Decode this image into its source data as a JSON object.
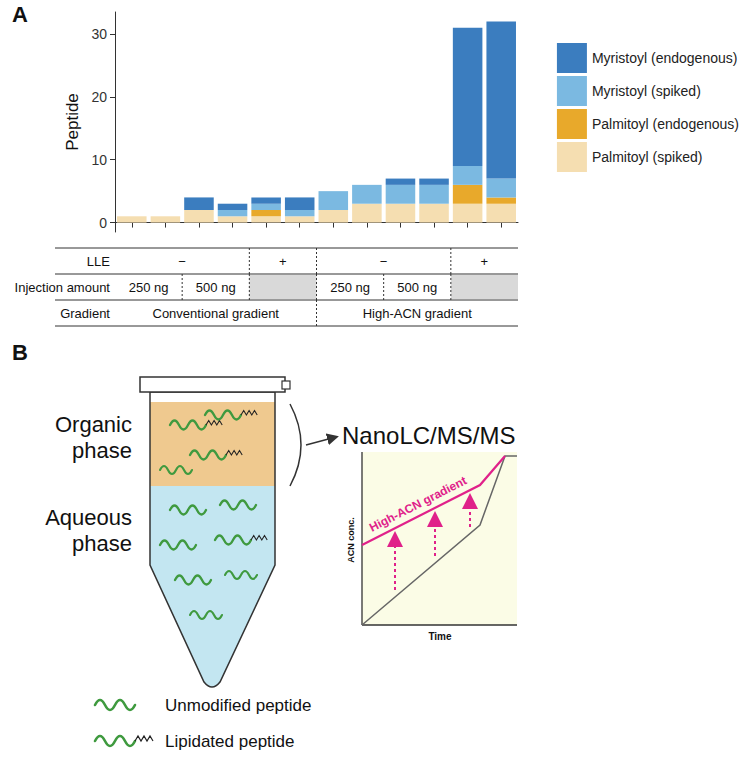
{
  "chart_data": {
    "type": "bar",
    "stacked": true,
    "y_label": "Peptide",
    "categories": [
      null,
      null,
      null,
      null,
      null,
      null,
      null,
      null,
      null,
      null,
      null,
      null
    ],
    "series": [
      {
        "name": "Myristoyl (endogenous)",
        "color": "#3b7dbf",
        "values": [
          0,
          0,
          2,
          1,
          1,
          2,
          0,
          0,
          1,
          1,
          22,
          25
        ]
      },
      {
        "name": "Myristoyl (spiked)",
        "color": "#7bb9e1",
        "values": [
          0,
          0,
          0,
          1,
          1,
          1,
          3,
          3,
          3,
          3,
          3,
          3
        ]
      },
      {
        "name": "Palmitoyl (endogenous)",
        "color": "#e8a92b",
        "values": [
          0,
          0,
          0,
          0,
          1,
          0,
          0,
          0,
          0,
          0,
          3,
          1
        ]
      },
      {
        "name": "Palmitoyl (spiked)",
        "color": "#f5deb1",
        "values": [
          1,
          1,
          2,
          1,
          1,
          1,
          2,
          3,
          3,
          3,
          3,
          3
        ]
      }
    ],
    "ylim": [
      -1.5,
      33.5
    ],
    "yticks": [
      0,
      10,
      20,
      30
    ],
    "grid": false,
    "legend": "right"
  },
  "panel_labels": [
    "A",
    "B"
  ],
  "condition_table": {
    "rows": [
      {
        "label": "LLE",
        "cells": [
          {
            "text": "−",
            "span": 4
          },
          {
            "text": "+",
            "span": 2
          },
          {
            "text": "−",
            "span": 4
          },
          {
            "text": "+",
            "span": 2
          }
        ]
      },
      {
        "label": "Injection amount",
        "cells": [
          {
            "text": "250 ng",
            "span": 2
          },
          {
            "text": "500 ng",
            "span": 2
          },
          {
            "text": null,
            "span": 2,
            "shaded": true
          },
          {
            "text": "250 ng",
            "span": 2
          },
          {
            "text": "500 ng",
            "span": 2
          },
          {
            "text": null,
            "span": 2,
            "shaded": true
          }
        ]
      },
      {
        "label": "Gradient",
        "cells": [
          {
            "text": "Conventional gradient",
            "span": 6
          },
          {
            "text": "High-ACN gradient",
            "span": 6
          }
        ]
      }
    ]
  },
  "diagram": {
    "tube": {
      "organic_phase": [
        "Organic",
        "phase"
      ],
      "aqueous_phase": [
        "Aqueous",
        "phase"
      ]
    },
    "instrument": "NanoLC/MS/MS",
    "gradient_plot": {
      "y_label": "ACN conc.",
      "x_label": "Time",
      "highlight": "High-ACN gradient"
    },
    "legend": [
      {
        "label": "Unmodified peptide",
        "marker": "unmodified"
      },
      {
        "label": "Lipidated peptide",
        "marker": "lipidated"
      }
    ]
  }
}
